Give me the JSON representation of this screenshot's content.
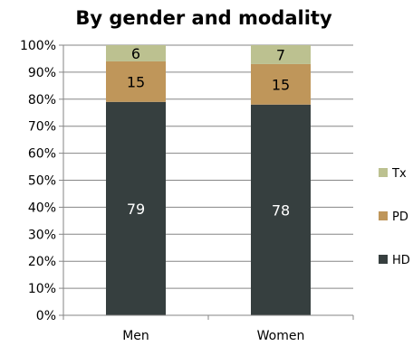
{
  "chart_data": {
    "type": "bar",
    "stacked": true,
    "percent": true,
    "title": "By gender and modality",
    "categories": [
      "Men",
      "Women"
    ],
    "series": [
      {
        "name": "HD",
        "values": [
          79,
          78
        ],
        "color": "#363f3f",
        "label_color": "#ffffff"
      },
      {
        "name": "PD",
        "values": [
          15,
          15
        ],
        "color": "#bf965a",
        "label_color": "#000000"
      },
      {
        "name": "Tx",
        "values": [
          6,
          7
        ],
        "color": "#bcc190",
        "label_color": "#000000"
      }
    ],
    "ylim": [
      0,
      100
    ],
    "yticks": [
      "0%",
      "10%",
      "20%",
      "30%",
      "40%",
      "50%",
      "60%",
      "70%",
      "80%",
      "90%",
      "100%"
    ],
    "grid": true,
    "legend_position": "right"
  }
}
